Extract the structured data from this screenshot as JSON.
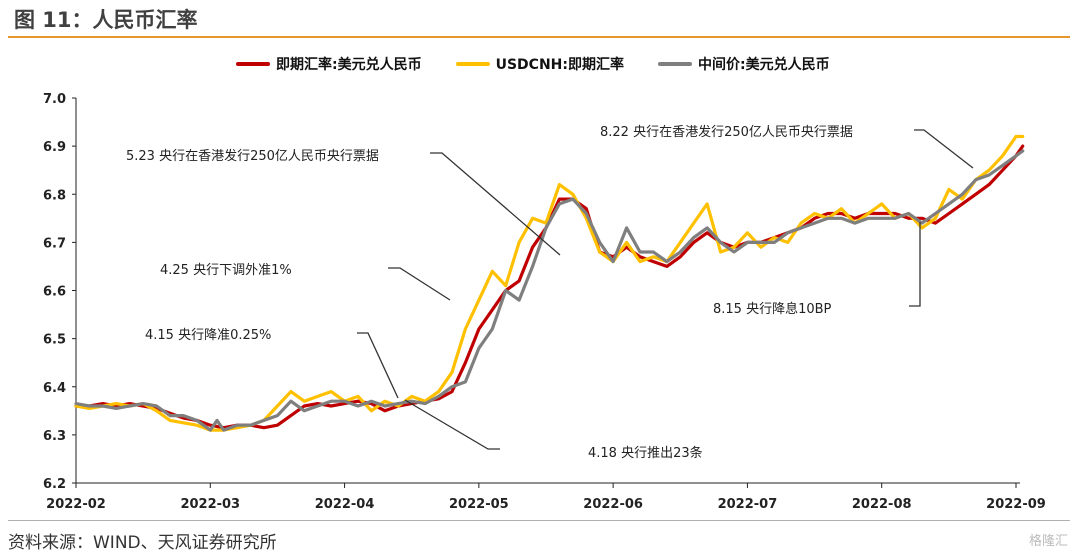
{
  "header": {
    "title": "图 11：人民币汇率"
  },
  "footer": {
    "source": "资料来源：WIND、天风证券研究所",
    "watermark": "格隆汇"
  },
  "chart_data": {
    "type": "line",
    "title": "",
    "xlabel": "",
    "ylabel": "",
    "ylim": [
      6.2,
      7.0
    ],
    "yticks": [
      "6.2",
      "6.3",
      "6.4",
      "6.5",
      "6.6",
      "6.7",
      "6.8",
      "6.9",
      "7.0"
    ],
    "x_ticks": [
      "2022-02",
      "2022-03",
      "2022-04",
      "2022-05",
      "2022-06",
      "2022-07",
      "2022-08",
      "2022-09"
    ],
    "grid": false,
    "legend_position": "top",
    "series": [
      {
        "name": "即期汇率:美元兑人民币",
        "color": "#c00000",
        "points": [
          [
            0,
            6.36
          ],
          [
            0.1,
            6.36
          ],
          [
            0.2,
            6.365
          ],
          [
            0.3,
            6.36
          ],
          [
            0.4,
            6.365
          ],
          [
            0.5,
            6.36
          ],
          [
            0.6,
            6.355
          ],
          [
            0.7,
            6.345
          ],
          [
            0.8,
            6.335
          ],
          [
            0.9,
            6.33
          ],
          [
            1.0,
            6.32
          ],
          [
            1.1,
            6.315
          ],
          [
            1.2,
            6.32
          ],
          [
            1.3,
            6.32
          ],
          [
            1.4,
            6.315
          ],
          [
            1.5,
            6.32
          ],
          [
            1.6,
            6.34
          ],
          [
            1.7,
            6.36
          ],
          [
            1.8,
            6.365
          ],
          [
            1.9,
            6.36
          ],
          [
            2.0,
            6.365
          ],
          [
            2.1,
            6.37
          ],
          [
            2.2,
            6.365
          ],
          [
            2.3,
            6.35
          ],
          [
            2.4,
            6.36
          ],
          [
            2.5,
            6.365
          ],
          [
            2.6,
            6.37
          ],
          [
            2.7,
            6.375
          ],
          [
            2.8,
            6.39
          ],
          [
            2.9,
            6.45
          ],
          [
            3.0,
            6.52
          ],
          [
            3.1,
            6.56
          ],
          [
            3.2,
            6.6
          ],
          [
            3.3,
            6.62
          ],
          [
            3.4,
            6.69
          ],
          [
            3.5,
            6.73
          ],
          [
            3.6,
            6.79
          ],
          [
            3.7,
            6.79
          ],
          [
            3.8,
            6.77
          ],
          [
            3.9,
            6.68
          ],
          [
            4.0,
            6.67
          ],
          [
            4.1,
            6.69
          ],
          [
            4.2,
            6.67
          ],
          [
            4.3,
            6.66
          ],
          [
            4.4,
            6.65
          ],
          [
            4.5,
            6.67
          ],
          [
            4.6,
            6.7
          ],
          [
            4.7,
            6.72
          ],
          [
            4.8,
            6.7
          ],
          [
            4.9,
            6.69
          ],
          [
            5.0,
            6.7
          ],
          [
            5.1,
            6.7
          ],
          [
            5.2,
            6.71
          ],
          [
            5.3,
            6.72
          ],
          [
            5.4,
            6.73
          ],
          [
            5.5,
            6.75
          ],
          [
            5.6,
            6.76
          ],
          [
            5.7,
            6.76
          ],
          [
            5.8,
            6.75
          ],
          [
            5.9,
            6.76
          ],
          [
            6.0,
            6.76
          ],
          [
            6.1,
            6.76
          ],
          [
            6.2,
            6.75
          ],
          [
            6.3,
            6.75
          ],
          [
            6.4,
            6.74
          ],
          [
            6.5,
            6.76
          ],
          [
            6.6,
            6.78
          ],
          [
            6.7,
            6.8
          ],
          [
            6.8,
            6.82
          ],
          [
            6.9,
            6.85
          ],
          [
            7.0,
            6.88
          ],
          [
            7.05,
            6.9
          ]
        ]
      },
      {
        "name": "USDCNH:即期汇率",
        "color": "#ffc000",
        "points": [
          [
            0,
            6.36
          ],
          [
            0.1,
            6.355
          ],
          [
            0.2,
            6.36
          ],
          [
            0.3,
            6.365
          ],
          [
            0.4,
            6.36
          ],
          [
            0.5,
            6.365
          ],
          [
            0.6,
            6.35
          ],
          [
            0.7,
            6.33
          ],
          [
            0.8,
            6.325
          ],
          [
            0.9,
            6.32
          ],
          [
            1.0,
            6.31
          ],
          [
            1.1,
            6.31
          ],
          [
            1.2,
            6.315
          ],
          [
            1.3,
            6.32
          ],
          [
            1.4,
            6.33
          ],
          [
            1.5,
            6.36
          ],
          [
            1.6,
            6.39
          ],
          [
            1.7,
            6.37
          ],
          [
            1.8,
            6.38
          ],
          [
            1.9,
            6.39
          ],
          [
            2.0,
            6.37
          ],
          [
            2.1,
            6.38
          ],
          [
            2.2,
            6.35
          ],
          [
            2.3,
            6.37
          ],
          [
            2.4,
            6.36
          ],
          [
            2.5,
            6.38
          ],
          [
            2.6,
            6.37
          ],
          [
            2.7,
            6.39
          ],
          [
            2.8,
            6.43
          ],
          [
            2.9,
            6.52
          ],
          [
            3.0,
            6.58
          ],
          [
            3.1,
            6.64
          ],
          [
            3.2,
            6.61
          ],
          [
            3.3,
            6.7
          ],
          [
            3.4,
            6.75
          ],
          [
            3.5,
            6.74
          ],
          [
            3.6,
            6.82
          ],
          [
            3.7,
            6.8
          ],
          [
            3.8,
            6.75
          ],
          [
            3.9,
            6.68
          ],
          [
            4.0,
            6.66
          ],
          [
            4.1,
            6.7
          ],
          [
            4.2,
            6.66
          ],
          [
            4.3,
            6.67
          ],
          [
            4.4,
            6.66
          ],
          [
            4.5,
            6.7
          ],
          [
            4.6,
            6.74
          ],
          [
            4.7,
            6.78
          ],
          [
            4.8,
            6.68
          ],
          [
            4.9,
            6.69
          ],
          [
            5.0,
            6.72
          ],
          [
            5.1,
            6.69
          ],
          [
            5.2,
            6.71
          ],
          [
            5.3,
            6.7
          ],
          [
            5.4,
            6.74
          ],
          [
            5.5,
            6.76
          ],
          [
            5.6,
            6.75
          ],
          [
            5.7,
            6.77
          ],
          [
            5.8,
            6.74
          ],
          [
            5.9,
            6.76
          ],
          [
            6.0,
            6.78
          ],
          [
            6.1,
            6.75
          ],
          [
            6.2,
            6.76
          ],
          [
            6.3,
            6.73
          ],
          [
            6.4,
            6.75
          ],
          [
            6.5,
            6.81
          ],
          [
            6.6,
            6.79
          ],
          [
            6.7,
            6.83
          ],
          [
            6.8,
            6.85
          ],
          [
            6.9,
            6.88
          ],
          [
            7.0,
            6.92
          ],
          [
            7.05,
            6.92
          ]
        ]
      },
      {
        "name": "中间价:美元兑人民币",
        "color": "#7f7f7f",
        "points": [
          [
            0,
            6.365
          ],
          [
            0.1,
            6.36
          ],
          [
            0.2,
            6.36
          ],
          [
            0.3,
            6.355
          ],
          [
            0.4,
            6.36
          ],
          [
            0.5,
            6.365
          ],
          [
            0.6,
            6.36
          ],
          [
            0.7,
            6.34
          ],
          [
            0.8,
            6.34
          ],
          [
            0.9,
            6.33
          ],
          [
            1.0,
            6.31
          ],
          [
            1.05,
            6.33
          ],
          [
            1.1,
            6.31
          ],
          [
            1.2,
            6.32
          ],
          [
            1.3,
            6.32
          ],
          [
            1.4,
            6.33
          ],
          [
            1.5,
            6.34
          ],
          [
            1.6,
            6.37
          ],
          [
            1.7,
            6.35
          ],
          [
            1.8,
            6.36
          ],
          [
            1.9,
            6.37
          ],
          [
            2.0,
            6.37
          ],
          [
            2.1,
            6.36
          ],
          [
            2.2,
            6.37
          ],
          [
            2.3,
            6.36
          ],
          [
            2.4,
            6.365
          ],
          [
            2.5,
            6.37
          ],
          [
            2.6,
            6.365
          ],
          [
            2.7,
            6.38
          ],
          [
            2.8,
            6.4
          ],
          [
            2.9,
            6.41
          ],
          [
            3.0,
            6.48
          ],
          [
            3.1,
            6.52
          ],
          [
            3.2,
            6.6
          ],
          [
            3.3,
            6.58
          ],
          [
            3.4,
            6.65
          ],
          [
            3.5,
            6.73
          ],
          [
            3.6,
            6.78
          ],
          [
            3.7,
            6.79
          ],
          [
            3.8,
            6.76
          ],
          [
            3.9,
            6.7
          ],
          [
            4.0,
            6.66
          ],
          [
            4.1,
            6.73
          ],
          [
            4.2,
            6.68
          ],
          [
            4.3,
            6.68
          ],
          [
            4.4,
            6.66
          ],
          [
            4.5,
            6.68
          ],
          [
            4.6,
            6.71
          ],
          [
            4.7,
            6.73
          ],
          [
            4.8,
            6.7
          ],
          [
            4.9,
            6.68
          ],
          [
            5.0,
            6.7
          ],
          [
            5.1,
            6.7
          ],
          [
            5.2,
            6.7
          ],
          [
            5.3,
            6.72
          ],
          [
            5.4,
            6.73
          ],
          [
            5.5,
            6.74
          ],
          [
            5.6,
            6.75
          ],
          [
            5.7,
            6.75
          ],
          [
            5.8,
            6.74
          ],
          [
            5.9,
            6.75
          ],
          [
            6.0,
            6.75
          ],
          [
            6.1,
            6.75
          ],
          [
            6.2,
            6.76
          ],
          [
            6.3,
            6.74
          ],
          [
            6.4,
            6.76
          ],
          [
            6.5,
            6.78
          ],
          [
            6.6,
            6.8
          ],
          [
            6.7,
            6.83
          ],
          [
            6.8,
            6.84
          ],
          [
            6.9,
            6.86
          ],
          [
            7.0,
            6.88
          ],
          [
            7.05,
            6.89
          ]
        ]
      }
    ],
    "annotations": [
      {
        "text": "5.23 央行在香港发行250亿人民币央行票据"
      },
      {
        "text": "4.25 央行下调外准1%"
      },
      {
        "text": "4.15 央行降准0.25%"
      },
      {
        "text": "4.18 央行推出23条"
      },
      {
        "text": "8.22 央行在香港发行250亿人民币央行票据"
      },
      {
        "text": "8.15 央行降息10BP"
      }
    ]
  }
}
